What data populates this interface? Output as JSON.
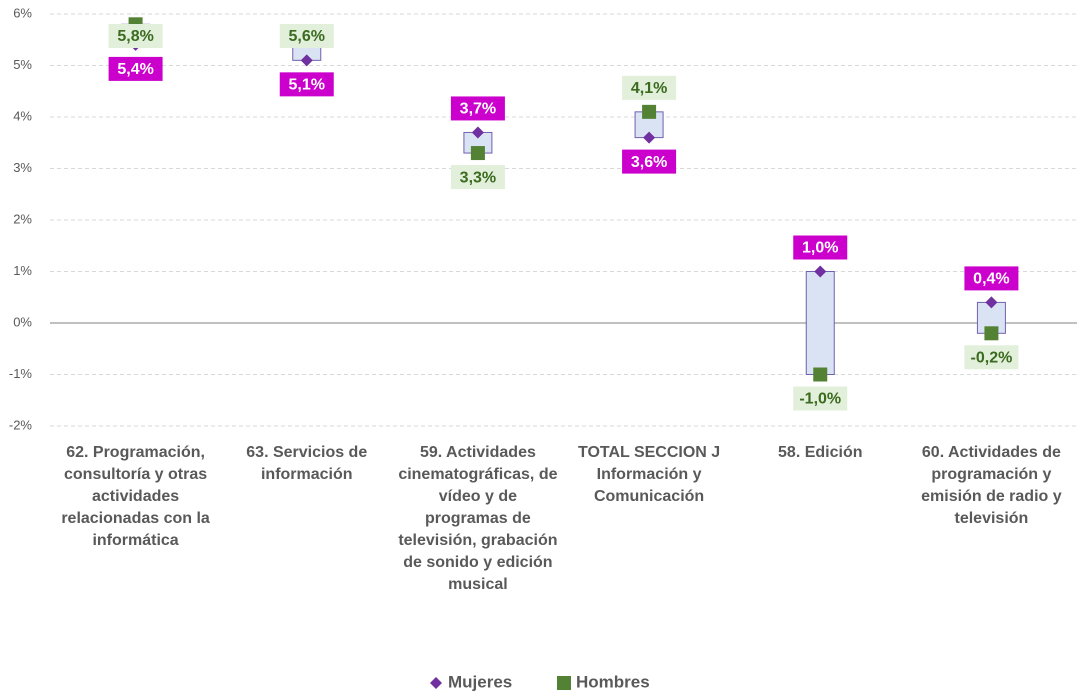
{
  "chart_data": {
    "type": "dot",
    "categories": [
      "62. Programación, consultoría y otras actividades relacionadas con la informática",
      "63. Servicios de información",
      "59. Actividades cinematográficas, de vídeo y de programas de televisión, grabación de sonido y edición musical",
      "TOTAL SECCION J Información y Comunicación",
      "58. Edición",
      "60. Actividades de programación y emisión de radio y televisión"
    ],
    "series": [
      {
        "name": "Mujeres",
        "color": "#7030a0",
        "label_color": "#cc00cc",
        "values": [
          5.4,
          5.1,
          3.7,
          3.6,
          1.0,
          0.4
        ],
        "value_labels": [
          "5,4%",
          "5,1%",
          "3,7%",
          "3,6%",
          "1,0%",
          "0,4%"
        ]
      },
      {
        "name": "Hombres",
        "color": "#548235",
        "label_color": "#e2efda",
        "values": [
          5.8,
          5.6,
          3.3,
          4.1,
          -1.0,
          -0.2
        ],
        "value_labels": [
          "5,8%",
          "5,6%",
          "3,3%",
          "4,1%",
          "-1,0%",
          "-0,2%"
        ]
      }
    ],
    "ylim": [
      -2,
      6
    ],
    "yticks": [
      {
        "value": -2,
        "label": "-2%"
      },
      {
        "value": -1,
        "label": "-1%"
      },
      {
        "value": 0,
        "label": "0%"
      },
      {
        "value": 1,
        "label": "1%"
      },
      {
        "value": 2,
        "label": "2%"
      },
      {
        "value": 3,
        "label": "3%"
      },
      {
        "value": 4,
        "label": "4%"
      },
      {
        "value": 5,
        "label": "5%"
      },
      {
        "value": 6,
        "label": "6%"
      }
    ],
    "grid": true,
    "legend": "bottom"
  }
}
